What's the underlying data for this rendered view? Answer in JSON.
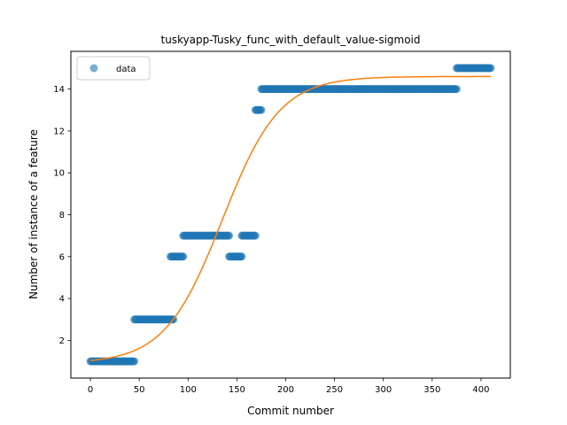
{
  "chart_data": {
    "type": "scatter",
    "title": "tuskyapp-Tusky_func_with_default_value-sigmoid",
    "xlabel": "Commit number",
    "ylabel": "Number of instance of a feature",
    "xlim": [
      -20,
      430
    ],
    "ylim": [
      0.2,
      15.8
    ],
    "xticks": [
      0,
      50,
      100,
      150,
      200,
      250,
      300,
      350,
      400
    ],
    "yticks": [
      2,
      4,
      6,
      8,
      10,
      12,
      14
    ],
    "grid": false,
    "legend": {
      "position": "top-left",
      "entries": [
        "data"
      ]
    },
    "colors": {
      "data": "#1f77b4",
      "fit": "#ff7f0e"
    },
    "series": [
      {
        "name": "data",
        "kind": "scatter",
        "segments": [
          {
            "x_start": 0,
            "x_end": 45,
            "y": 1
          },
          {
            "x_start": 45,
            "x_end": 85,
            "y": 3
          },
          {
            "x_start": 82,
            "x_end": 95,
            "y": 6
          },
          {
            "x_start": 95,
            "x_end": 142,
            "y": 7
          },
          {
            "x_start": 142,
            "x_end": 155,
            "y": 6
          },
          {
            "x_start": 155,
            "x_end": 169,
            "y": 7
          },
          {
            "x_start": 169,
            "x_end": 175,
            "y": 13
          },
          {
            "x_start": 175,
            "x_end": 375,
            "y": 14
          },
          {
            "x_start": 375,
            "x_end": 410,
            "y": 15
          }
        ]
      },
      {
        "kind": "line",
        "model": "sigmoid",
        "L": 14.6,
        "k": 0.034,
        "x0": 135,
        "offset": 0.9,
        "x_range": [
          0,
          410
        ]
      }
    ]
  }
}
